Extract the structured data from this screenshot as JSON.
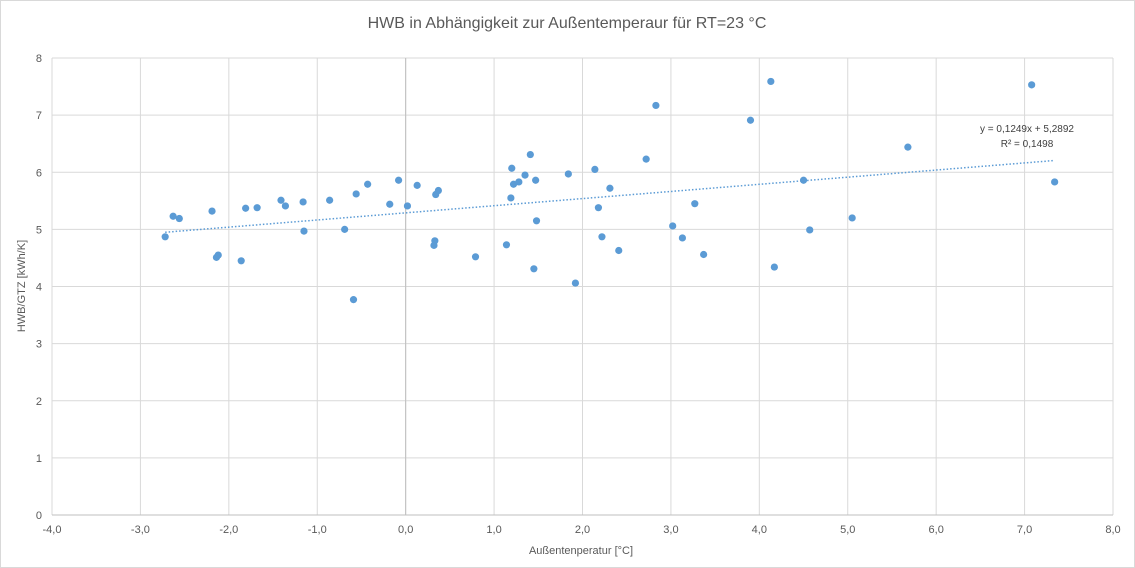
{
  "chart_data": {
    "type": "scatter",
    "title": "HWB in Abhängigkeit zur Außentemperaur für RT=23 °C",
    "xlabel": "Außentenperatur  [°C]",
    "ylabel": "HWB/GTZ  [kWh/K]",
    "xlim": [
      -4.0,
      8.0
    ],
    "ylim": [
      0,
      8
    ],
    "x_ticks": [
      "-4,0",
      "-3,0",
      "-2,0",
      "-1,0",
      "0,0",
      "1,0",
      "2,0",
      "3,0",
      "4,0",
      "5,0",
      "6,0",
      "7,0",
      "8,0"
    ],
    "y_ticks": [
      "0",
      "1",
      "2",
      "3",
      "4",
      "5",
      "6",
      "7",
      "8"
    ],
    "grid": true,
    "colors": {
      "points": "#5b9bd5",
      "trendline": "#5b9bd5",
      "grid": "#d9d9d9"
    },
    "points": [
      {
        "x": -2.72,
        "y": 4.87
      },
      {
        "x": -2.63,
        "y": 5.23
      },
      {
        "x": -2.56,
        "y": 5.19
      },
      {
        "x": -2.19,
        "y": 5.32
      },
      {
        "x": -2.14,
        "y": 4.51
      },
      {
        "x": -2.12,
        "y": 4.55
      },
      {
        "x": -1.86,
        "y": 4.45
      },
      {
        "x": -1.81,
        "y": 5.37
      },
      {
        "x": -1.68,
        "y": 5.38
      },
      {
        "x": -1.41,
        "y": 5.51
      },
      {
        "x": -1.36,
        "y": 5.41
      },
      {
        "x": -1.16,
        "y": 5.48
      },
      {
        "x": -1.15,
        "y": 4.97
      },
      {
        "x": -0.86,
        "y": 5.51
      },
      {
        "x": -0.69,
        "y": 5.0
      },
      {
        "x": -0.59,
        "y": 3.77
      },
      {
        "x": -0.56,
        "y": 5.62
      },
      {
        "x": -0.43,
        "y": 5.79
      },
      {
        "x": -0.18,
        "y": 5.44
      },
      {
        "x": -0.08,
        "y": 5.86
      },
      {
        "x": 0.02,
        "y": 5.41
      },
      {
        "x": 0.13,
        "y": 5.77
      },
      {
        "x": 0.32,
        "y": 4.72
      },
      {
        "x": 0.33,
        "y": 4.8
      },
      {
        "x": 0.34,
        "y": 5.61
      },
      {
        "x": 0.37,
        "y": 5.68
      },
      {
        "x": 0.79,
        "y": 4.52
      },
      {
        "x": 1.14,
        "y": 4.73
      },
      {
        "x": 1.19,
        "y": 5.55
      },
      {
        "x": 1.2,
        "y": 6.07
      },
      {
        "x": 1.22,
        "y": 5.79
      },
      {
        "x": 1.28,
        "y": 5.83
      },
      {
        "x": 1.35,
        "y": 5.95
      },
      {
        "x": 1.41,
        "y": 6.31
      },
      {
        "x": 1.45,
        "y": 4.31
      },
      {
        "x": 1.47,
        "y": 5.86
      },
      {
        "x": 1.48,
        "y": 5.15
      },
      {
        "x": 1.84,
        "y": 5.97
      },
      {
        "x": 1.92,
        "y": 4.06
      },
      {
        "x": 2.14,
        "y": 6.05
      },
      {
        "x": 2.18,
        "y": 5.38
      },
      {
        "x": 2.22,
        "y": 4.87
      },
      {
        "x": 2.31,
        "y": 5.72
      },
      {
        "x": 2.41,
        "y": 4.63
      },
      {
        "x": 2.72,
        "y": 6.23
      },
      {
        "x": 2.83,
        "y": 7.17
      },
      {
        "x": 3.02,
        "y": 5.06
      },
      {
        "x": 3.13,
        "y": 4.85
      },
      {
        "x": 3.27,
        "y": 5.45
      },
      {
        "x": 3.37,
        "y": 4.56
      },
      {
        "x": 3.9,
        "y": 6.91
      },
      {
        "x": 4.13,
        "y": 7.59
      },
      {
        "x": 4.17,
        "y": 4.34
      },
      {
        "x": 4.5,
        "y": 5.86
      },
      {
        "x": 4.57,
        "y": 4.99
      },
      {
        "x": 5.05,
        "y": 5.2
      },
      {
        "x": 5.68,
        "y": 6.44
      },
      {
        "x": 7.08,
        "y": 7.53
      },
      {
        "x": 7.34,
        "y": 5.83
      }
    ],
    "trendline": {
      "type": "linear",
      "slope": 0.1249,
      "intercept": 5.2892,
      "x_range": [
        -2.72,
        7.34
      ],
      "equation_label": "y = 0,1249x + 5,2892",
      "r2_label": "R² = 0,1498"
    }
  }
}
